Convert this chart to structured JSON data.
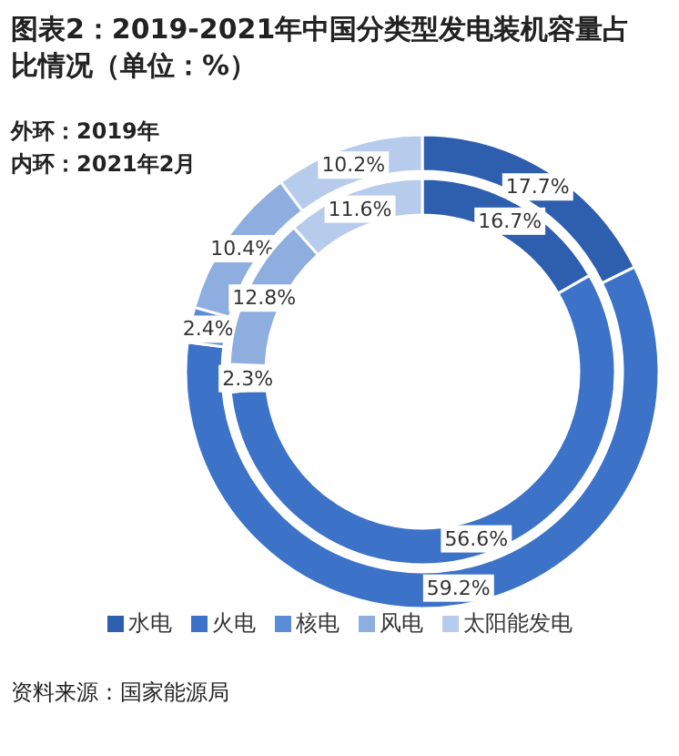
{
  "chart_data": {
    "type": "donut",
    "title": "图表2：2019-2021年中国分类型发电装机容量占比情况（单位：%）",
    "categories": [
      "水电",
      "火电",
      "核电",
      "风电",
      "太阳能发电"
    ],
    "colors": [
      "#2e5fae",
      "#3c72c8",
      "#5b8cd6",
      "#8eaee0",
      "#b7cbec"
    ],
    "series": [
      {
        "values": [
          17.7,
          59.2,
          2.4,
          10.4,
          10.2
        ],
        "value_labels": [
          "17.7%",
          "59.2%",
          "2.4%",
          "10.4%",
          "10.2%"
        ]
      },
      {
        "values": [
          16.7,
          56.6,
          2.3,
          12.8,
          11.6
        ],
        "value_labels": [
          "16.7%",
          "56.6%",
          "2.3%",
          "12.8%",
          "11.6%"
        ]
      }
    ],
    "legend": "bottom",
    "annotations": [
      "外环：2019年",
      "内环：2021年2月",
      "资料来源：国家能源局"
    ]
  }
}
